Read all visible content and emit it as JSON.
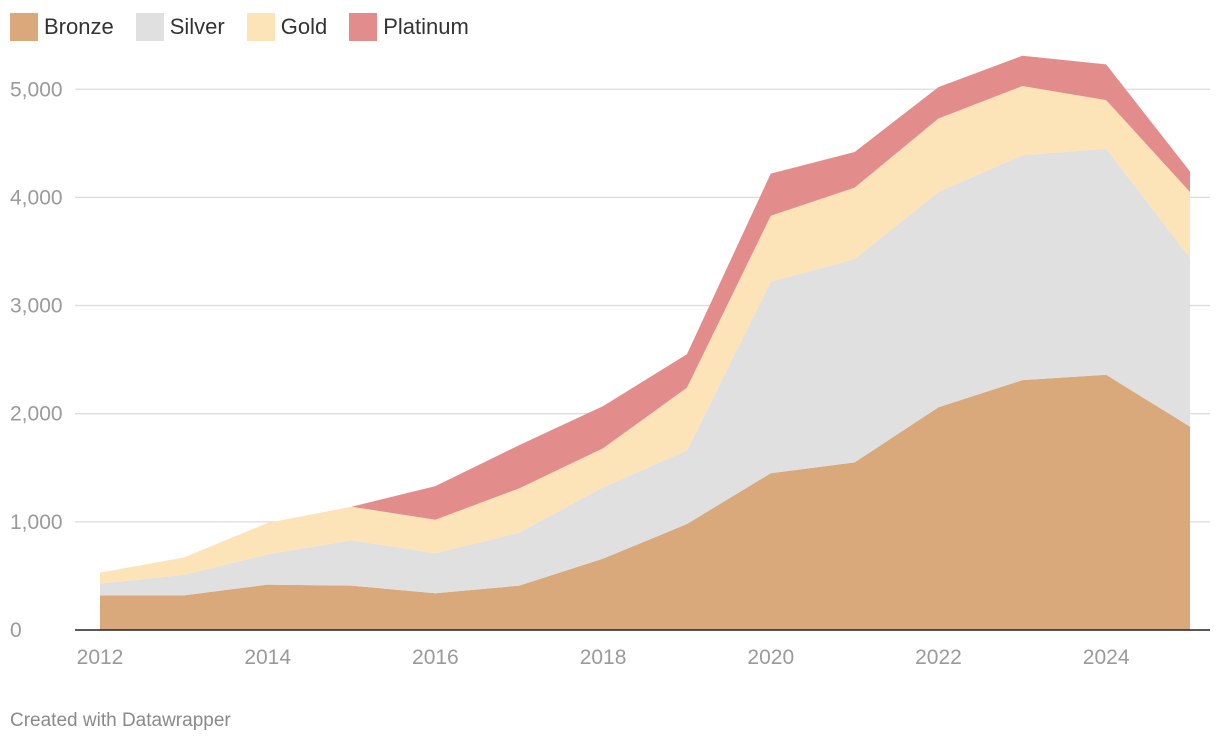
{
  "chart_data": {
    "type": "area",
    "stacked": true,
    "x": [
      2012,
      2013,
      2014,
      2015,
      2016,
      2017,
      2018,
      2019,
      2020,
      2021,
      2022,
      2023,
      2024,
      2025
    ],
    "series": [
      {
        "name": "Bronze",
        "color": "#d9a97c",
        "values": [
          320,
          320,
          420,
          410,
          340,
          410,
          660,
          980,
          1450,
          1550,
          2060,
          2310,
          2360,
          1880
        ]
      },
      {
        "name": "Silver",
        "color": "#e0e0e0",
        "values": [
          110,
          190,
          280,
          420,
          370,
          490,
          660,
          680,
          1770,
          1880,
          1990,
          2080,
          2090,
          1560
        ]
      },
      {
        "name": "Gold",
        "color": "#fde3b8",
        "values": [
          100,
          160,
          290,
          310,
          310,
          410,
          360,
          580,
          610,
          660,
          680,
          640,
          450,
          610
        ]
      },
      {
        "name": "Platinum",
        "color": "#e38c8c",
        "values": [
          0,
          0,
          0,
          0,
          310,
          400,
          390,
          310,
          390,
          330,
          290,
          280,
          330,
          190
        ]
      }
    ],
    "ylim": [
      0,
      5400
    ],
    "y_ticks": [
      0,
      1000,
      2000,
      3000,
      4000,
      5000
    ],
    "y_tick_labels": [
      "0",
      "1,000",
      "2,000",
      "3,000",
      "4,000",
      "5,000"
    ],
    "x_ticks": [
      2012,
      2014,
      2016,
      2018,
      2020,
      2022,
      2024
    ],
    "x_tick_labels": [
      "2012",
      "2014",
      "2016",
      "2018",
      "2020",
      "2022",
      "2024"
    ],
    "title": "",
    "xlabel": "",
    "ylabel": "",
    "grid": true,
    "legend_position": "top-left"
  },
  "legend": [
    {
      "label": "Bronze",
      "color": "#d9a97c"
    },
    {
      "label": "Silver",
      "color": "#e0e0e0"
    },
    {
      "label": "Gold",
      "color": "#fde3b8"
    },
    {
      "label": "Platinum",
      "color": "#e38c8c"
    }
  ],
  "footer": {
    "credit": "Created with Datawrapper"
  }
}
